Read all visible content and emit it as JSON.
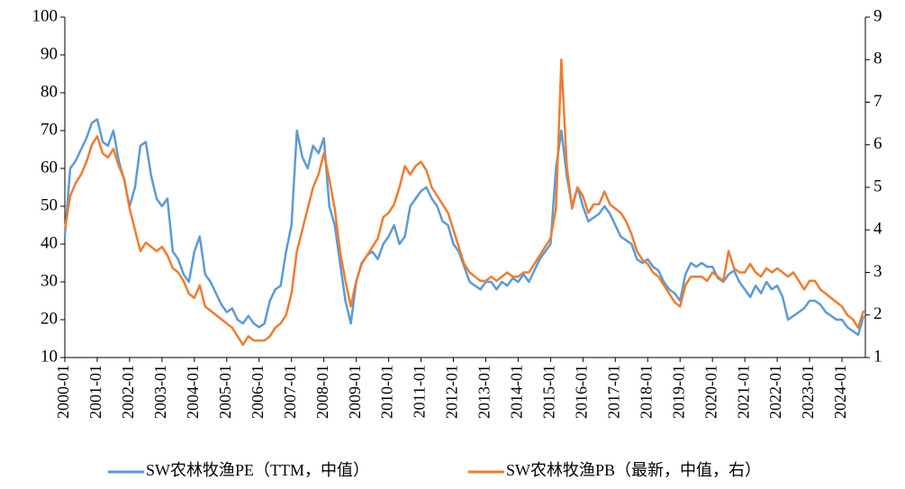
{
  "chart_data": {
    "type": "line",
    "x": [
      "2000-01",
      "2000-03",
      "2000-05",
      "2000-07",
      "2000-09",
      "2000-11",
      "2001-01",
      "2001-03",
      "2001-05",
      "2001-07",
      "2001-09",
      "2001-11",
      "2002-01",
      "2002-03",
      "2002-05",
      "2002-07",
      "2002-09",
      "2002-11",
      "2003-01",
      "2003-03",
      "2003-05",
      "2003-07",
      "2003-09",
      "2003-11",
      "2004-01",
      "2004-03",
      "2004-05",
      "2004-07",
      "2004-09",
      "2004-11",
      "2005-01",
      "2005-03",
      "2005-05",
      "2005-07",
      "2005-09",
      "2005-11",
      "2006-01",
      "2006-03",
      "2006-05",
      "2006-07",
      "2006-09",
      "2006-11",
      "2007-01",
      "2007-03",
      "2007-05",
      "2007-07",
      "2007-09",
      "2007-11",
      "2008-01",
      "2008-03",
      "2008-05",
      "2008-07",
      "2008-09",
      "2008-11",
      "2009-01",
      "2009-03",
      "2009-05",
      "2009-07",
      "2009-09",
      "2009-11",
      "2010-01",
      "2010-03",
      "2010-05",
      "2010-07",
      "2010-09",
      "2010-11",
      "2011-01",
      "2011-03",
      "2011-05",
      "2011-07",
      "2011-09",
      "2011-11",
      "2012-01",
      "2012-03",
      "2012-05",
      "2012-07",
      "2012-09",
      "2012-11",
      "2013-01",
      "2013-03",
      "2013-05",
      "2013-07",
      "2013-09",
      "2013-11",
      "2014-01",
      "2014-03",
      "2014-05",
      "2014-07",
      "2014-09",
      "2014-11",
      "2015-01",
      "2015-03",
      "2015-05",
      "2015-07",
      "2015-09",
      "2015-11",
      "2016-01",
      "2016-03",
      "2016-05",
      "2016-07",
      "2016-09",
      "2016-11",
      "2017-01",
      "2017-03",
      "2017-05",
      "2017-07",
      "2017-09",
      "2017-11",
      "2018-01",
      "2018-03",
      "2018-05",
      "2018-07",
      "2018-09",
      "2018-11",
      "2019-01",
      "2019-03",
      "2019-05",
      "2019-07",
      "2019-09",
      "2019-11",
      "2020-01",
      "2020-03",
      "2020-05",
      "2020-07",
      "2020-09",
      "2020-11",
      "2021-01",
      "2021-03",
      "2021-05",
      "2021-07",
      "2021-09",
      "2021-11",
      "2022-01",
      "2022-03",
      "2022-05",
      "2022-07",
      "2022-09",
      "2022-11",
      "2023-01",
      "2023-03",
      "2023-05",
      "2023-07",
      "2023-09",
      "2023-11",
      "2024-01",
      "2024-03",
      "2024-05",
      "2024-07",
      "2024-09"
    ],
    "xticks": [
      "2000-01",
      "2001-01",
      "2002-01",
      "2003-01",
      "2004-01",
      "2005-01",
      "2006-01",
      "2007-01",
      "2008-01",
      "2009-01",
      "2010-01",
      "2011-01",
      "2012-01",
      "2013-01",
      "2014-01",
      "2015-01",
      "2016-01",
      "2017-01",
      "2018-01",
      "2019-01",
      "2020-01",
      "2021-01",
      "2022-01",
      "2023-01",
      "2024-01"
    ],
    "series": [
      {
        "name": "SW农林牧渔PE（TTM，中值）",
        "color": "#5b9bd5",
        "values": [
          42,
          60,
          62,
          65,
          68,
          72,
          73,
          67,
          66,
          70,
          62,
          57,
          50,
          55,
          66,
          67,
          58,
          52,
          50,
          52,
          38,
          36,
          32,
          30,
          38,
          42,
          32,
          30,
          27,
          24,
          22,
          23,
          20,
          19,
          21,
          19,
          18,
          19,
          25,
          28,
          29,
          38,
          45,
          70,
          63,
          60,
          66,
          64,
          68,
          50,
          45,
          35,
          25,
          19,
          30,
          35,
          37,
          38,
          36,
          40,
          42,
          45,
          40,
          42,
          50,
          52,
          54,
          55,
          52,
          50,
          46,
          45,
          40,
          38,
          34,
          30,
          29,
          28,
          30,
          30,
          28,
          30,
          29,
          31,
          30,
          32,
          30,
          33,
          36,
          38,
          40,
          60,
          70,
          58,
          50,
          55,
          50,
          46,
          47,
          48,
          50,
          48,
          45,
          42,
          41,
          40,
          36,
          35,
          36,
          34,
          33,
          30,
          28,
          27,
          25,
          32,
          35,
          34,
          35,
          34,
          34,
          31,
          30,
          32,
          33,
          30,
          28,
          26,
          29,
          27,
          30,
          28,
          29,
          26,
          20,
          21,
          22,
          23,
          25,
          25,
          24,
          22,
          21,
          20,
          20,
          18,
          17,
          16,
          21
        ]
      },
      {
        "name": "SW农林牧渔PB（最新，中值，右）",
        "color": "#ed7d31",
        "axis": "y2",
        "values": [
          4.0,
          4.8,
          5.1,
          5.3,
          5.6,
          6.0,
          6.2,
          5.8,
          5.7,
          5.9,
          5.5,
          5.2,
          4.5,
          4.0,
          3.5,
          3.7,
          3.6,
          3.5,
          3.6,
          3.4,
          3.1,
          3.0,
          2.8,
          2.5,
          2.4,
          2.7,
          2.2,
          2.1,
          2.0,
          1.9,
          1.8,
          1.7,
          1.5,
          1.3,
          1.5,
          1.4,
          1.4,
          1.4,
          1.5,
          1.7,
          1.8,
          2.0,
          2.5,
          3.5,
          4.0,
          4.5,
          5.0,
          5.3,
          5.8,
          5.2,
          4.5,
          3.5,
          2.8,
          2.2,
          2.8,
          3.2,
          3.4,
          3.6,
          3.8,
          4.3,
          4.4,
          4.6,
          5.0,
          5.5,
          5.3,
          5.5,
          5.6,
          5.4,
          5.0,
          4.8,
          4.6,
          4.4,
          4.0,
          3.6,
          3.2,
          3.0,
          2.9,
          2.8,
          2.8,
          2.9,
          2.8,
          2.9,
          3.0,
          2.9,
          2.9,
          3.0,
          3.0,
          3.2,
          3.4,
          3.6,
          3.8,
          4.5,
          8.0,
          5.5,
          4.5,
          5.0,
          4.8,
          4.4,
          4.6,
          4.6,
          4.9,
          4.6,
          4.5,
          4.4,
          4.2,
          3.9,
          3.5,
          3.3,
          3.2,
          3.0,
          2.9,
          2.7,
          2.5,
          2.3,
          2.2,
          2.7,
          2.9,
          2.9,
          2.9,
          2.8,
          3.0,
          2.9,
          2.8,
          3.5,
          3.1,
          3.0,
          3.0,
          3.2,
          3.0,
          2.9,
          3.1,
          3.0,
          3.1,
          3.0,
          2.9,
          3.0,
          2.8,
          2.6,
          2.8,
          2.8,
          2.6,
          2.5,
          2.4,
          2.3,
          2.2,
          2.0,
          1.9,
          1.7,
          2.1
        ]
      }
    ],
    "ylim": [
      10,
      100
    ],
    "yticks": [
      10,
      20,
      30,
      40,
      50,
      60,
      70,
      80,
      90,
      100
    ],
    "y2lim": [
      1,
      9
    ],
    "y2ticks": [
      1,
      2,
      3,
      4,
      5,
      6,
      7,
      8,
      9
    ],
    "legend": "bottom"
  }
}
